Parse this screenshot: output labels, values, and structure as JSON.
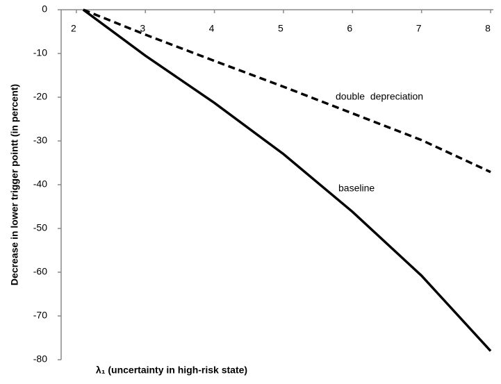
{
  "chart_data": {
    "type": "line",
    "x_label": "λ₁ (uncertainty in high-risk state)",
    "y_label": "Decrease in lower trigger pointt (in percent)",
    "x": [
      2.1,
      3,
      4,
      5,
      6,
      7,
      8
    ],
    "series": [
      {
        "name": "baseline",
        "color": "#000000",
        "dash": false,
        "values": [
          0,
          -10.5,
          -21.3,
          -33,
          -46.2,
          -60.8,
          -78
        ]
      },
      {
        "name": "double  depreciation",
        "color": "#000000",
        "dash": true,
        "values": [
          0,
          -5.7,
          -11.7,
          -17.6,
          -23.7,
          -29.8,
          -37.1
        ]
      }
    ],
    "xlim": [
      1.78,
      8.04
    ],
    "xticks": [
      2,
      3,
      4,
      5,
      6,
      7,
      8
    ],
    "ylim": [
      -80,
      0
    ],
    "yticks": [
      0,
      -10,
      -20,
      -30,
      -40,
      -50,
      -60,
      -70,
      -80
    ],
    "grid": false
  }
}
